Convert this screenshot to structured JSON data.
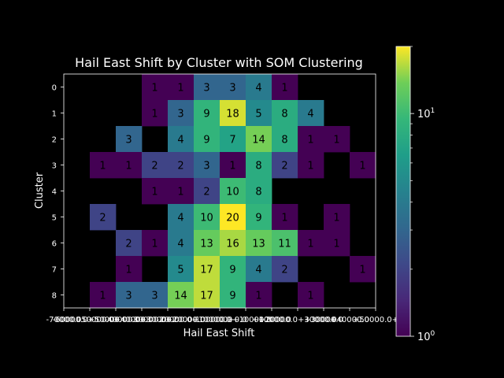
{
  "chart_data": {
    "type": "heatmap",
    "title": "Hail East Shift by Cluster with SOM Clustering",
    "xlabel": "Hail East Shift",
    "ylabel": "Cluster",
    "x_tick_labels": [
      "-70000.0",
      "-60000.0",
      "-50000.0",
      "-40000.0",
      "-30000.0",
      "-20000.0",
      "-10000.0",
      "0.0",
      "+10000.0",
      "+20000.0",
      "+30000.0",
      "+40000.0",
      "+50000.0+"
    ],
    "x_tick_labels_note_alt": "",
    "x_tick_display": [
      "-70000.0",
      "-60000.0+50000.0",
      "-50000.0+40000.0",
      "-40000.0+30000.0",
      "-30000.0+20000.0",
      "-20000.0+10000.0",
      "-10000.0+0.0",
      "0.0+10000.0",
      "+10000.0",
      "+20000.0+30000.0",
      "+30000.0",
      "+40000.0",
      "+50000.0+"
    ],
    "y_categories": [
      "0",
      "1",
      "2",
      "3",
      "4",
      "5",
      "6",
      "7",
      "8"
    ],
    "matrix": [
      [
        null,
        null,
        null,
        1,
        1,
        3,
        3,
        4,
        1,
        null,
        null,
        null
      ],
      [
        null,
        null,
        null,
        1,
        3,
        9,
        18,
        5,
        8,
        4,
        null,
        null
      ],
      [
        null,
        null,
        3,
        null,
        4,
        9,
        7,
        14,
        8,
        1,
        1,
        null
      ],
      [
        null,
        1,
        1,
        2,
        2,
        3,
        1,
        8,
        2,
        1,
        null,
        1
      ],
      [
        null,
        null,
        null,
        1,
        1,
        2,
        10,
        8,
        null,
        null,
        null,
        null
      ],
      [
        null,
        2,
        null,
        null,
        4,
        10,
        20,
        9,
        1,
        null,
        1,
        null
      ],
      [
        null,
        null,
        2,
        1,
        4,
        13,
        16,
        13,
        11,
        1,
        1,
        null
      ],
      [
        null,
        null,
        1,
        null,
        5,
        17,
        9,
        4,
        2,
        null,
        null,
        1
      ],
      [
        null,
        1,
        3,
        3,
        14,
        17,
        9,
        1,
        null,
        1,
        null,
        null
      ]
    ],
    "color_scale": "log",
    "colormap": "viridis",
    "vmin": 1,
    "vmax": 20,
    "colorbar_ticks": [
      {
        "value": 1,
        "base": "10",
        "exp": "0"
      },
      {
        "value": 10,
        "base": "10",
        "exp": "1"
      }
    ],
    "grid": false,
    "background": "#000000",
    "text_color": "#ffffff",
    "cell_text_color": "#000000"
  }
}
